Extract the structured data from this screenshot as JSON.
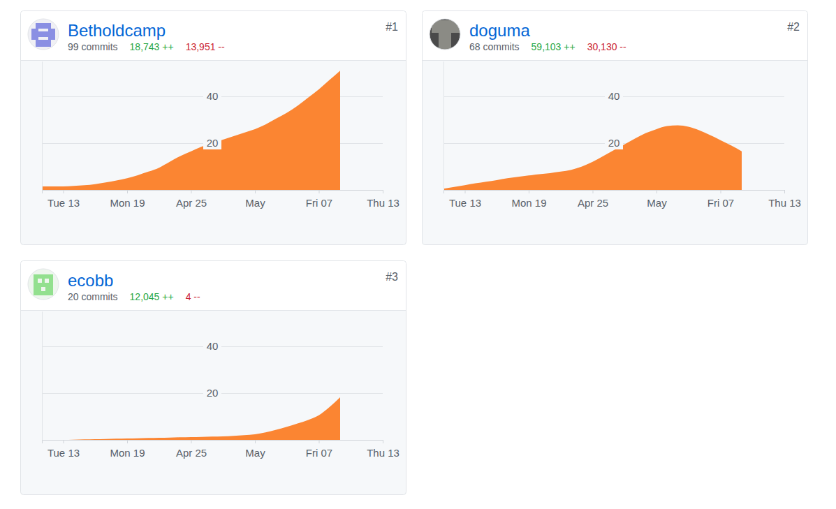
{
  "contributors": [
    {
      "rank": "#1",
      "commits": "99 commits",
      "additions": "18,743 ++",
      "deletions": "13,951 --"
    },
    {
      "rank": "#2",
      "commits": "68 commits",
      "additions": "59,103 ++",
      "deletions": "30,130 --"
    },
    {
      "rank": "#3",
      "commits": "20 commits",
      "additions": "12,045 ++",
      "deletions": "4 --"
    }
  ],
  "chart_data": [
    {
      "type": "area",
      "title": "Betholdcamp",
      "categories": [
        null,
        null,
        "Tue 13",
        null,
        null,
        null,
        null,
        null,
        "Mon 19",
        null,
        null,
        null,
        null,
        null,
        "Apr 25",
        null,
        null,
        null,
        null,
        null,
        "May",
        null,
        null,
        null,
        null,
        null,
        "Fri 07",
        null,
        null,
        null,
        null,
        null,
        "Thu 13"
      ],
      "values": [
        1.5,
        1.5,
        1.5,
        1.7,
        2,
        2.5,
        3.2,
        4,
        5,
        6.3,
        7.8,
        9.5,
        12,
        14.5,
        16.5,
        18.5,
        20,
        21.5,
        23,
        24.5,
        26,
        28,
        30.5,
        33,
        36,
        39.5,
        43,
        47,
        51,
        null,
        null,
        null,
        null
      ],
      "color": "#fb8532",
      "ylim": [
        0,
        55
      ],
      "yticks": [
        20,
        40
      ],
      "grid": true
    },
    {
      "type": "area",
      "title": "doguma",
      "categories": [
        null,
        null,
        "Tue 13",
        null,
        null,
        null,
        null,
        null,
        "Mon 19",
        null,
        null,
        null,
        null,
        null,
        "Apr 25",
        null,
        null,
        null,
        null,
        null,
        "May",
        null,
        null,
        null,
        null,
        null,
        "Fri 07",
        null,
        null,
        null,
        null,
        null,
        "Thu 13"
      ],
      "values": [
        0.5,
        1.3,
        2,
        2.8,
        3.5,
        4.2,
        5,
        5.6,
        6.2,
        6.7,
        7.2,
        7.8,
        8.6,
        10,
        12,
        14.5,
        17,
        19.5,
        22,
        24.3,
        26,
        27.3,
        27.6,
        27,
        25.5,
        23.5,
        21.3,
        19,
        16.5,
        null,
        null,
        null,
        null
      ],
      "color": "#fb8532",
      "ylim": [
        0,
        55
      ],
      "yticks": [
        20,
        40
      ],
      "grid": true
    },
    {
      "type": "area",
      "title": "ecobb",
      "categories": [
        null,
        null,
        "Tue 13",
        null,
        null,
        null,
        null,
        null,
        "Mon 19",
        null,
        null,
        null,
        null,
        null,
        "Apr 25",
        null,
        null,
        null,
        null,
        null,
        "May",
        null,
        null,
        null,
        null,
        null,
        "Fri 07",
        null,
        null,
        null,
        null,
        null,
        "Thu 13"
      ],
      "values": [
        0,
        0,
        0,
        0.1,
        0.2,
        0.3,
        0.4,
        0.5,
        0.6,
        0.7,
        0.8,
        0.9,
        1,
        1.1,
        1.2,
        1.3,
        1.4,
        1.5,
        1.7,
        2,
        2.4,
        3.2,
        4.3,
        5.6,
        7,
        8.5,
        10.5,
        14,
        18.2,
        null,
        null,
        null,
        null
      ],
      "color": "#fb8532",
      "ylim": [
        0,
        55
      ],
      "yticks": [
        20,
        40
      ],
      "grid": true
    }
  ]
}
